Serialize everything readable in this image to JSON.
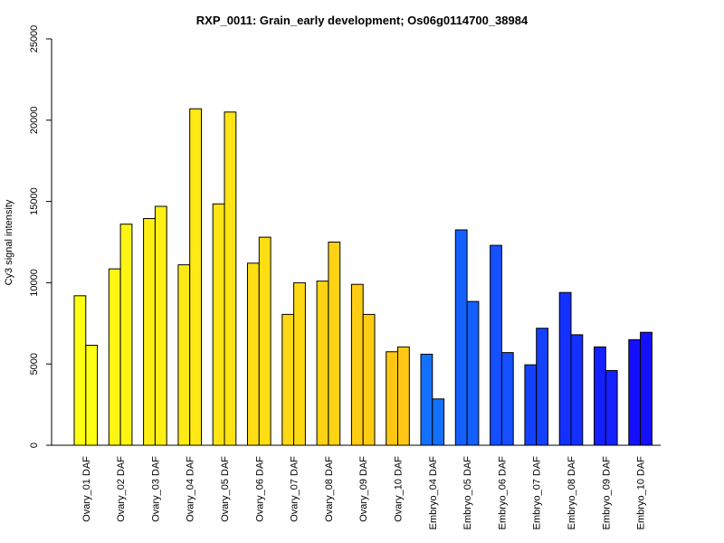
{
  "chart_data": {
    "type": "bar",
    "title": "RXP_0011: Grain_early development; Os06g0114700_38984",
    "xlabel": "",
    "ylabel": "Cy3 signal intensity",
    "ylim": [
      0,
      25000
    ],
    "yticks": [
      0,
      5000,
      10000,
      15000,
      20000,
      25000
    ],
    "grid": false,
    "legend": "none",
    "categories": [
      "Ovary_01 DAF",
      "Ovary_02 DAF",
      "Ovary_03 DAF",
      "Ovary_04 DAF",
      "Ovary_05 DAF",
      "Ovary_06 DAF",
      "Ovary_07 DAF",
      "Ovary_08 DAF",
      "Ovary_09 DAF",
      "Ovary_10 DAF",
      "Embryo_04 DAF",
      "Embryo_05 DAF",
      "Embryo_06 DAF",
      "Embryo_07 DAF",
      "Embryo_08 DAF",
      "Embryo_09 DAF",
      "Embryo_10 DAF"
    ],
    "series": [
      {
        "values": [
          9200,
          10850,
          13950,
          11100,
          14850,
          11200,
          8050,
          10100,
          9900,
          5750,
          5600,
          13250,
          12300,
          4950,
          9400,
          6050,
          6500
        ]
      },
      {
        "values": [
          6150,
          13600,
          14700,
          20700,
          20500,
          12800,
          10000,
          12500,
          8050,
          6050,
          2850,
          8850,
          5700,
          7200,
          6800,
          4600,
          6950
        ]
      }
    ],
    "colors": [
      "#ffff14",
      "#fff514",
      "#ffef14",
      "#ffe914",
      "#ffe314",
      "#ffde14",
      "#ffd814",
      "#ffd214",
      "#ffcc14",
      "#ffc714",
      "#1470ff",
      "#1460ff",
      "#1450ff",
      "#1440ff",
      "#1430ff",
      "#1420ff",
      "#1410ff"
    ]
  }
}
